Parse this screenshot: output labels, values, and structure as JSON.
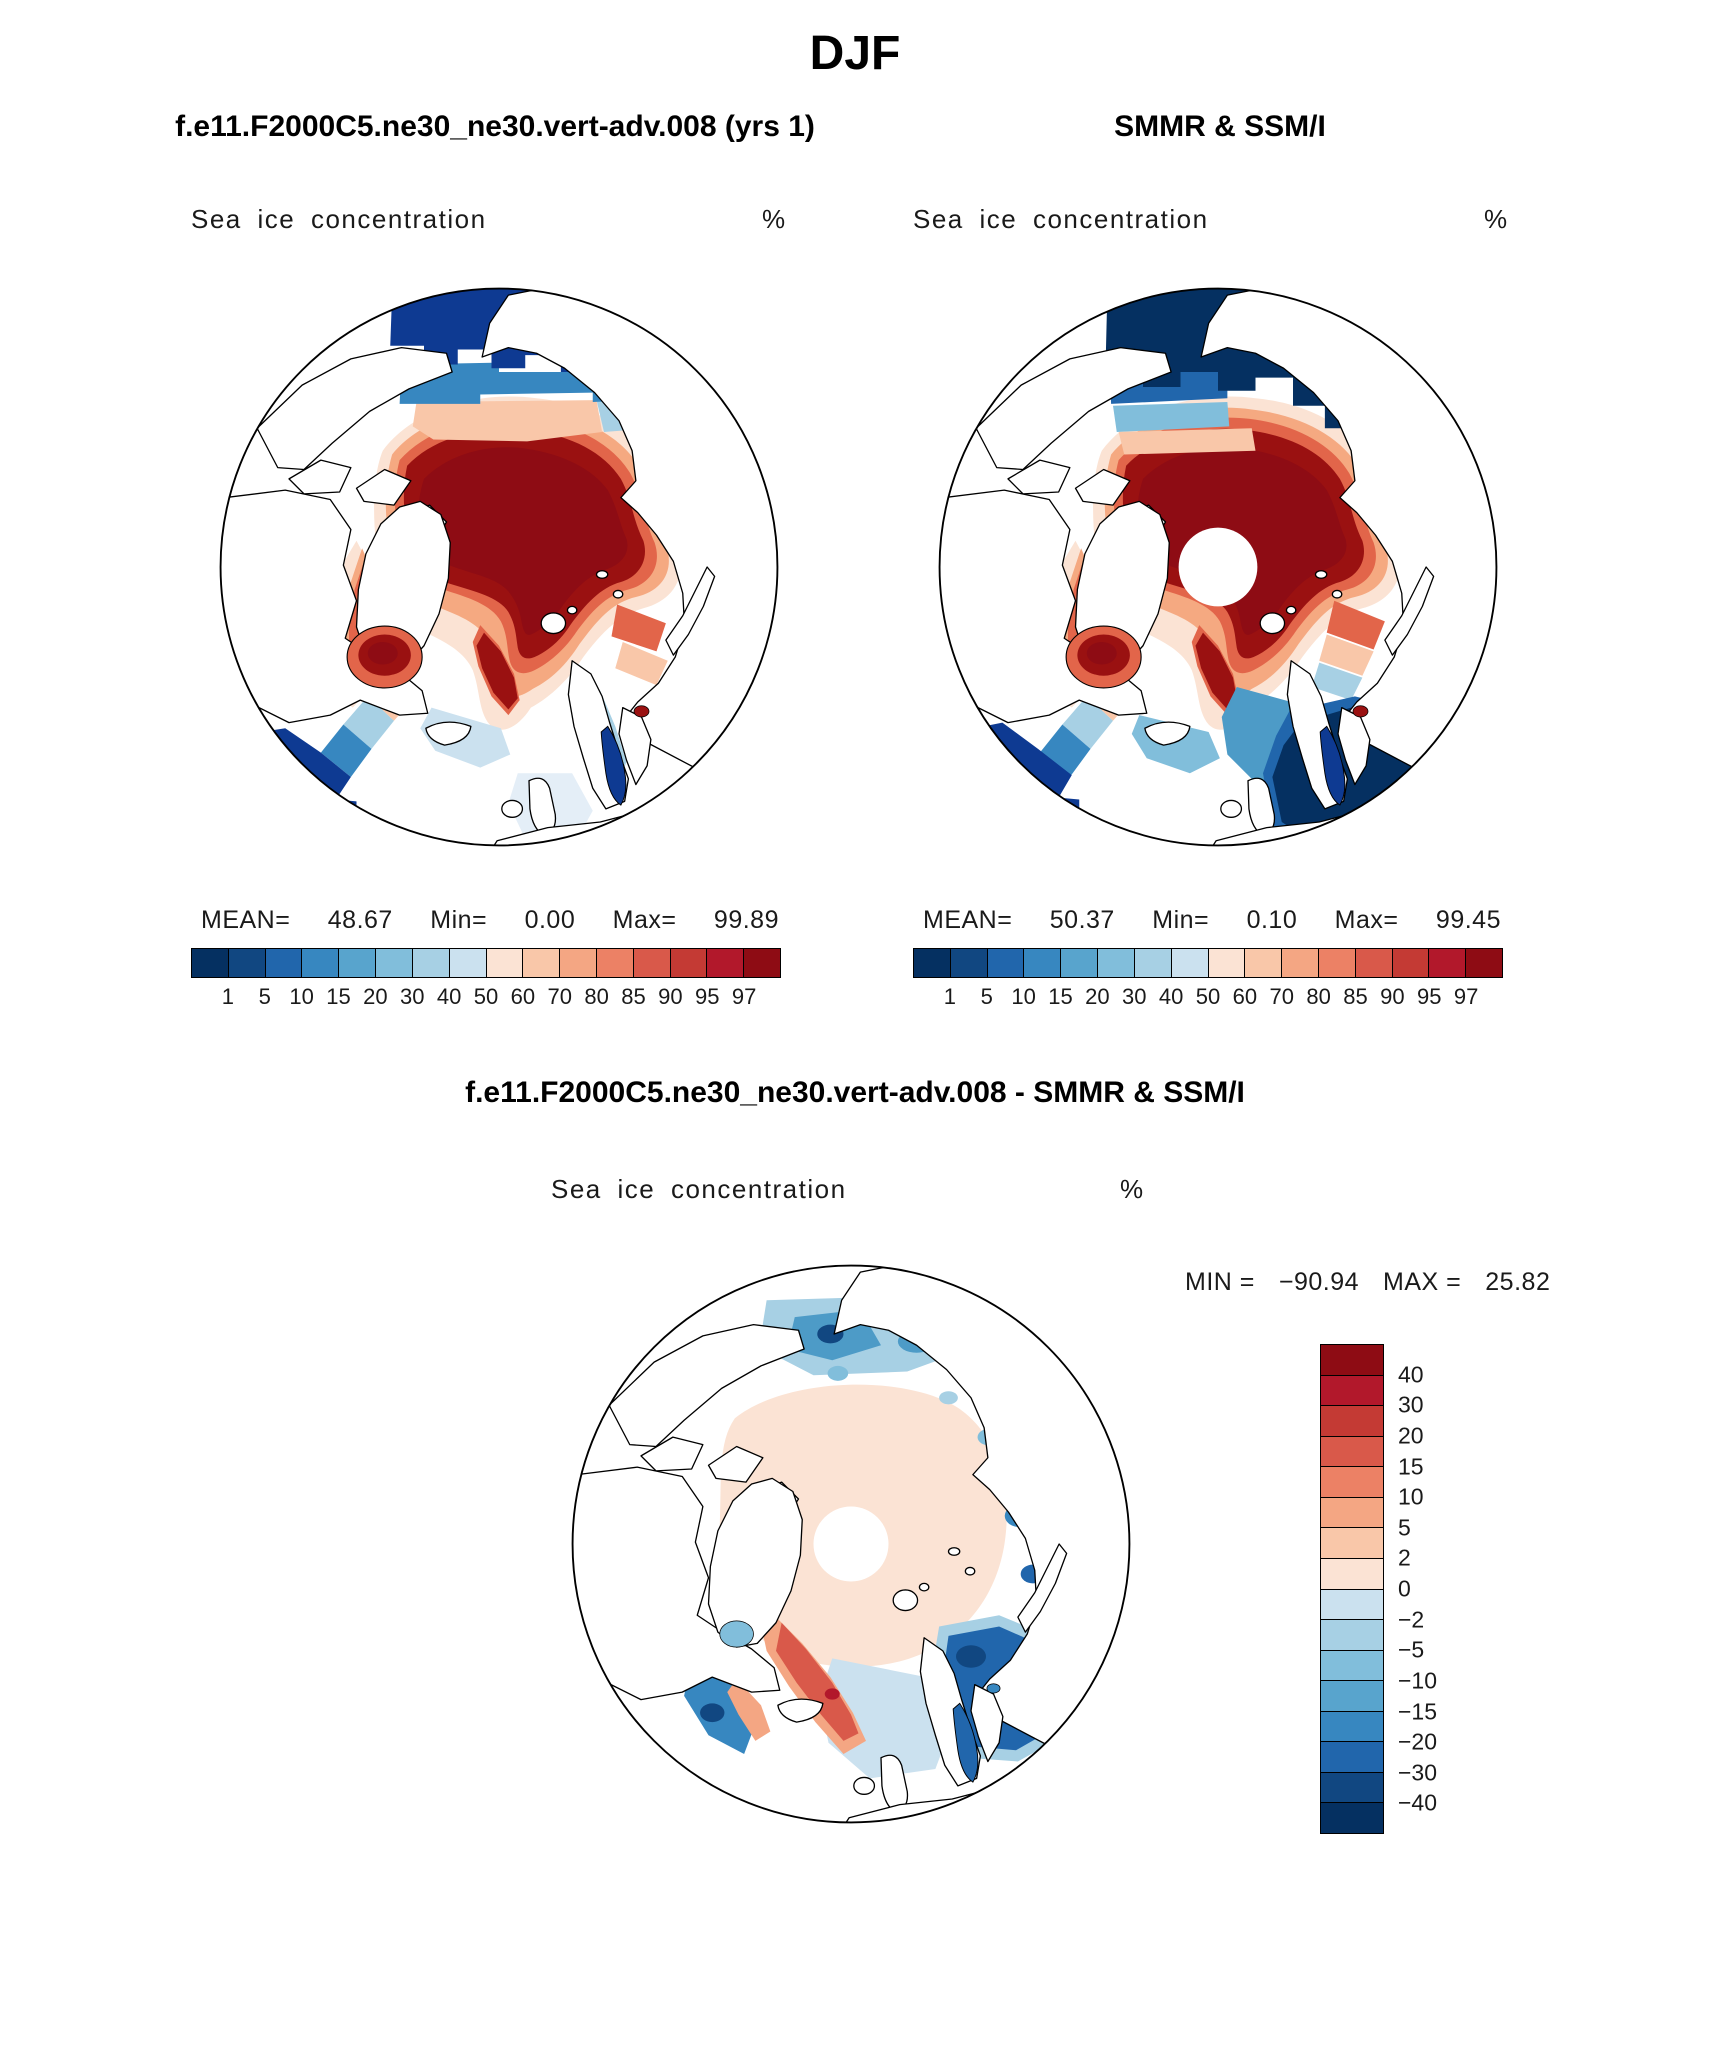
{
  "page": {
    "season_title": "DJF"
  },
  "model_panel": {
    "title": "f.e11.F2000C5.ne30_ne30.vert-adv.008 (yrs 1)",
    "field_label": "Sea ice concentration",
    "units_label": "%",
    "mean_label": "MEAN=",
    "mean_value": "48.67",
    "min_label": "Min=",
    "min_value": "0.00",
    "max_label": "Max=",
    "max_value": "99.89"
  },
  "obs_panel": {
    "title": "SMMR & SSM/I",
    "field_label": "Sea ice concentration",
    "units_label": "%",
    "mean_label": "MEAN=",
    "mean_value": "50.37",
    "min_label": "Min=",
    "min_value": "0.10",
    "max_label": "Max=",
    "max_value": "99.45"
  },
  "diff_panel": {
    "title": "f.e11.F2000C5.ne30_ne30.vert-adv.008 - SMMR & SSM/I",
    "field_label": "Sea ice concentration",
    "units_label": "%",
    "min_label": "MIN =",
    "min_value": "−90.94",
    "max_label": "MAX =",
    "max_value": "25.82"
  },
  "colorbars": {
    "concentration": {
      "ticks": [
        "1",
        "5",
        "10",
        "15",
        "20",
        "30",
        "40",
        "50",
        "60",
        "70",
        "80",
        "85",
        "90",
        "95",
        "97"
      ],
      "colors": [
        "#053061",
        "#114781",
        "#2166ac",
        "#3787c0",
        "#58a4cd",
        "#81bedb",
        "#a7d0e4",
        "#cbe1ef",
        "#fbe3d4",
        "#f9c7a9",
        "#f4a683",
        "#ec8165",
        "#d9594a",
        "#c43a34",
        "#b2182b",
        "#8e0c14"
      ]
    },
    "difference": {
      "ticks": [
        "40",
        "30",
        "20",
        "15",
        "10",
        "5",
        "2",
        "0",
        "−2",
        "−5",
        "−10",
        "−15",
        "−20",
        "−30",
        "−40"
      ],
      "colors": [
        "#8e0c14",
        "#b2182b",
        "#c43a34",
        "#d9594a",
        "#ec8165",
        "#f4a683",
        "#f9c7a9",
        "#fbe3d4",
        "#cbe1ef",
        "#a7d0e4",
        "#81bedb",
        "#58a4cd",
        "#3787c0",
        "#2166ac",
        "#114781",
        "#053061"
      ]
    }
  },
  "chart_data": [
    {
      "type": "heatmap",
      "subtype": "north_polar_stereographic_map",
      "season": "DJF",
      "panel_label": "f.e11.F2000C5.ne30_ne30.vert-adv.008 (yrs 1)",
      "title": "Sea ice concentration",
      "units": "%",
      "levels": [
        1,
        5,
        10,
        15,
        20,
        30,
        40,
        50,
        60,
        70,
        80,
        85,
        90,
        95,
        97
      ],
      "stats": {
        "mean": 48.67,
        "min": 0.0,
        "max": 99.89
      },
      "legend_position": "bottom"
    },
    {
      "type": "heatmap",
      "subtype": "north_polar_stereographic_map",
      "season": "DJF",
      "panel_label": "SMMR & SSM/I",
      "title": "Sea ice concentration",
      "units": "%",
      "levels": [
        1,
        5,
        10,
        15,
        20,
        30,
        40,
        50,
        60,
        70,
        80,
        85,
        90,
        95,
        97
      ],
      "stats": {
        "mean": 50.37,
        "min": 0.1,
        "max": 99.45
      },
      "legend_position": "bottom",
      "annotations": [
        "white pole-hole data gap at center"
      ]
    },
    {
      "type": "heatmap",
      "subtype": "north_polar_stereographic_difference_map",
      "season": "DJF",
      "panel_label": "f.e11.F2000C5.ne30_ne30.vert-adv.008 - SMMR & SSM/I",
      "title": "Sea ice concentration",
      "units": "%",
      "levels": [
        -40,
        -30,
        -20,
        -15,
        -10,
        -5,
        -2,
        0,
        2,
        5,
        10,
        15,
        20,
        30,
        40
      ],
      "stats": {
        "min": -90.94,
        "max": 25.82
      },
      "legend_position": "right"
    }
  ]
}
